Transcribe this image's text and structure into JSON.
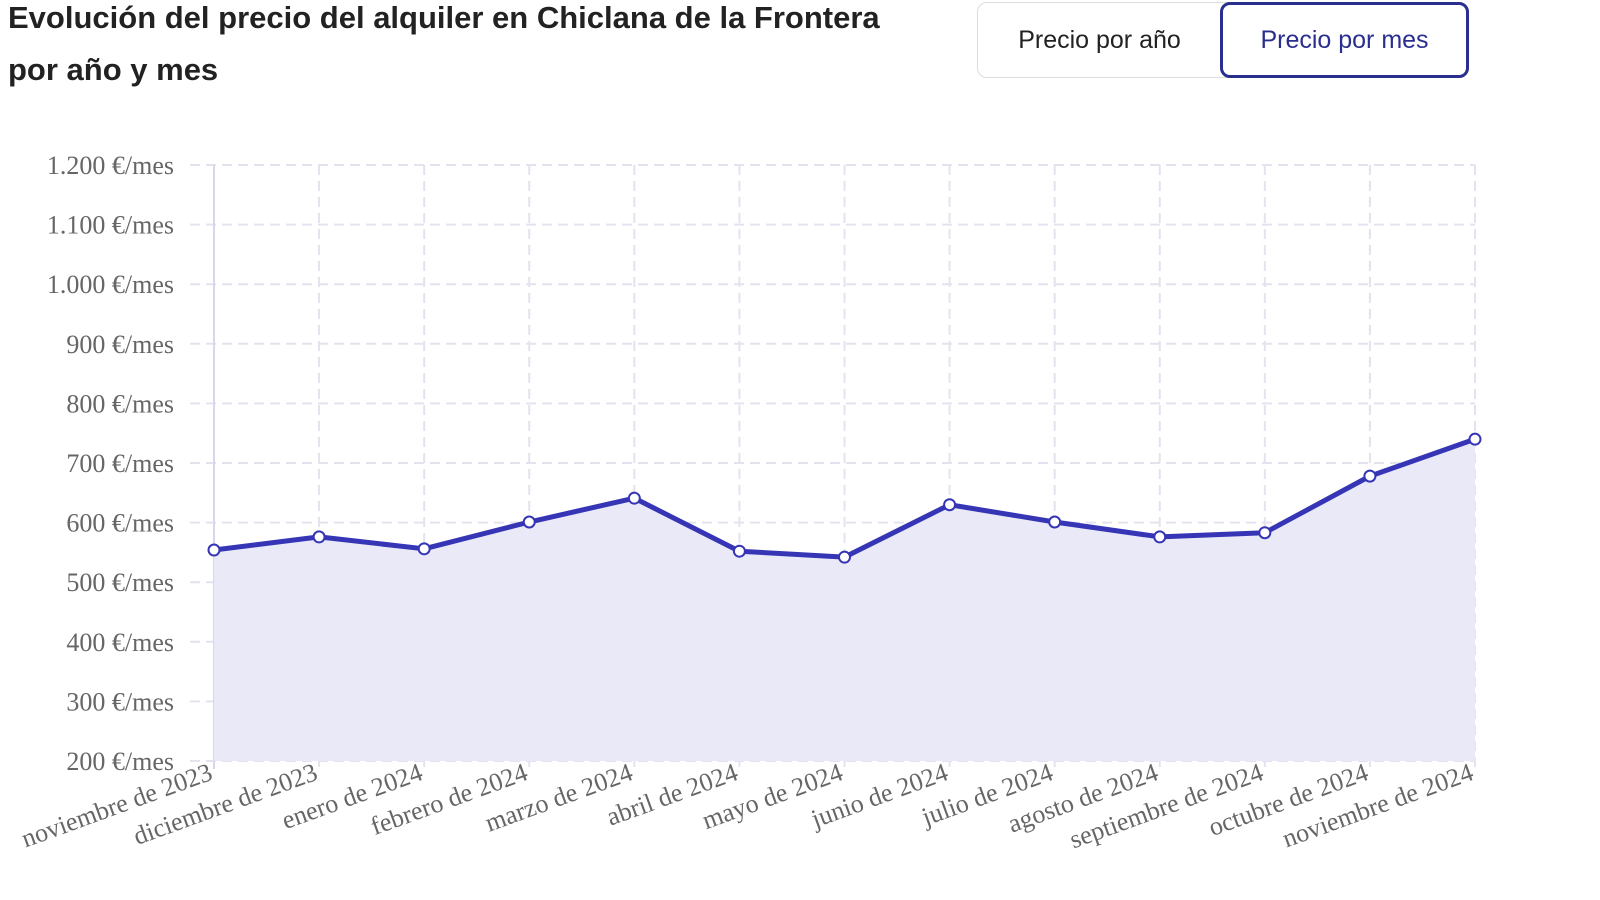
{
  "title": "Evolución del precio del alquiler en Chiclana de la Frontera por año y mes",
  "toggle": {
    "options": [
      "Precio por año",
      "Precio por mes"
    ],
    "selected": "Precio por mes"
  },
  "colors": {
    "line": "#3535b5",
    "fill": "#e9e9f8",
    "grid": "#e3e3ef",
    "accent": "#2a2f8f"
  },
  "chart_data": {
    "type": "area",
    "title": "",
    "xlabel": "",
    "ylabel": "",
    "ylim": [
      200,
      1200
    ],
    "grid": true,
    "yticks": [
      "200 €/mes",
      "300 €/mes",
      "400 €/mes",
      "500 €/mes",
      "600 €/mes",
      "700 €/mes",
      "800 €/mes",
      "900 €/mes",
      "1.000 €/mes",
      "1.100 €/mes",
      "1.200 €/mes"
    ],
    "categories": [
      "noviembre de 2023",
      "diciembre de 2023",
      "enero de 2024",
      "febrero de 2024",
      "marzo de 2024",
      "abril de 2024",
      "mayo de 2024",
      "junio de 2024",
      "julio de 2024",
      "agosto de 2024",
      "septiembre de 2024",
      "octubre de 2024",
      "noviembre de 2024"
    ],
    "values": [
      554,
      576,
      556,
      601,
      641,
      552,
      542,
      630,
      601,
      576,
      583,
      678,
      740
    ]
  }
}
